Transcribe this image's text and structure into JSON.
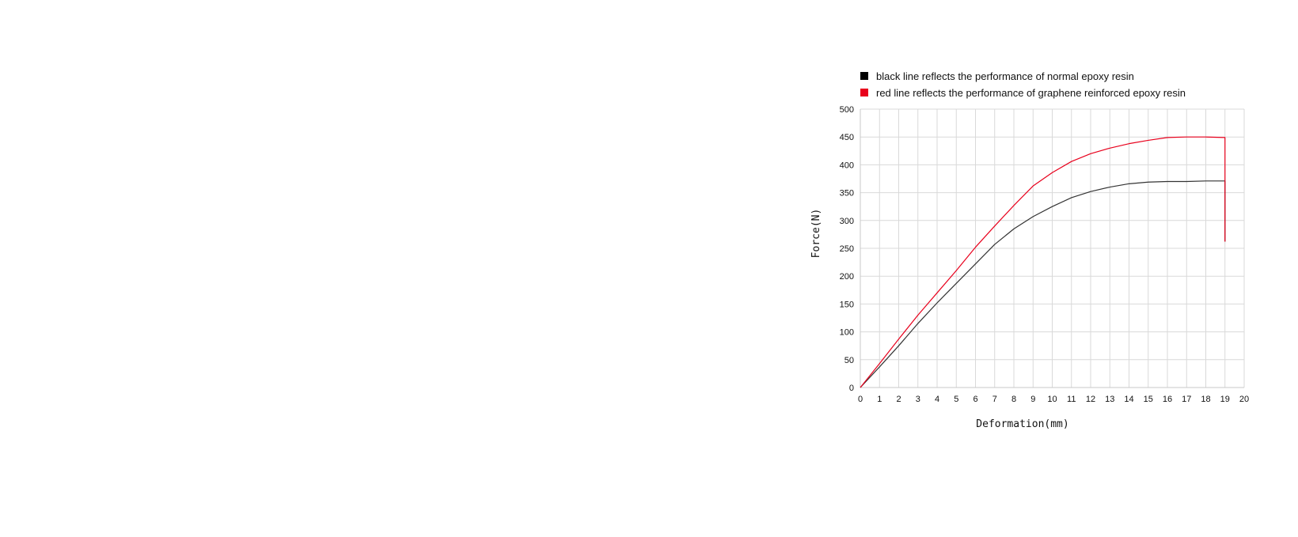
{
  "chart_data": {
    "type": "line",
    "title": "",
    "xlabel": "Deformation(mm)",
    "ylabel": "Force(N)",
    "xlim": [
      0,
      20
    ],
    "ylim": [
      0,
      500
    ],
    "x_ticks": [
      0,
      1,
      2,
      3,
      4,
      5,
      6,
      7,
      8,
      9,
      10,
      11,
      12,
      13,
      14,
      15,
      16,
      17,
      18,
      19,
      20
    ],
    "y_ticks": [
      0,
      50,
      100,
      150,
      200,
      250,
      300,
      350,
      400,
      450,
      500
    ],
    "grid": true,
    "legend_position": "top-left",
    "series": [
      {
        "name": "black line reflects the performance of normal epoxy resin",
        "color": "#000000",
        "line_color": "#333333",
        "x": [
          0,
          1,
          2,
          3,
          4,
          5,
          6,
          7,
          8,
          9,
          10,
          11,
          12,
          13,
          14,
          15,
          16,
          17,
          18,
          19,
          19
        ],
        "y": [
          0,
          37,
          75,
          115,
          152,
          187,
          222,
          257,
          285,
          307,
          325,
          341,
          352,
          360,
          366,
          369,
          370,
          370,
          371,
          371,
          262
        ]
      },
      {
        "name": "red line reflects the performance of graphene reinforced epoxy resin",
        "color": "#e8001c",
        "line_color": "#e8001c",
        "x": [
          0,
          1,
          2,
          3,
          4,
          5,
          6,
          7,
          8,
          9,
          10,
          11,
          12,
          13,
          14,
          15,
          16,
          17,
          18,
          19,
          19
        ],
        "y": [
          0,
          43,
          87,
          130,
          170,
          210,
          252,
          290,
          327,
          362,
          386,
          406,
          420,
          430,
          438,
          444,
          449,
          450,
          450,
          449,
          262
        ]
      }
    ]
  }
}
